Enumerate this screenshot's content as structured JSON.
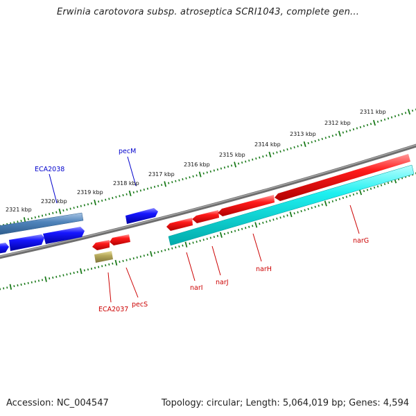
{
  "title": "Erwinia carotovora subsp. atroseptica SCRI1043, complete gen...",
  "footer": {
    "accession": "Accession: NC_004547",
    "summary": "Topology: circular; Length: 5,064,019 bp; Genes: 4,594"
  },
  "colors": {
    "backbone": "#777777",
    "tick_green": "#1a7a1a",
    "forward_gene": "#ee0000",
    "forward_cds": "#00e5e5",
    "reverse_gene": "#0000ee",
    "reverse_cds": "#4a7fb5",
    "other_feature": "#b5a85a",
    "label_forward": "#cc0000",
    "label_reverse": "#0000cc"
  },
  "scale": {
    "ticks": [
      {
        "label": "2311 kbp"
      },
      {
        "label": "2312 kbp"
      },
      {
        "label": "2313 kbp"
      },
      {
        "label": "2314 kbp"
      },
      {
        "label": "2315 kbp"
      },
      {
        "label": "2316 kbp"
      },
      {
        "label": "2317 kbp"
      },
      {
        "label": "2318 kbp"
      },
      {
        "label": "2319 kbp"
      },
      {
        "label": "2320 kbp"
      },
      {
        "label": "2321 kbp"
      }
    ]
  },
  "features": [
    {
      "name": "ECA2038",
      "strand": "reverse"
    },
    {
      "name": "pecM",
      "strand": "reverse"
    },
    {
      "name": "ECA2037",
      "strand": "forward"
    },
    {
      "name": "pecS",
      "strand": "forward"
    },
    {
      "name": "narI",
      "strand": "forward"
    },
    {
      "name": "narJ",
      "strand": "forward"
    },
    {
      "name": "narH",
      "strand": "forward"
    },
    {
      "name": "narG",
      "strand": "forward"
    }
  ]
}
